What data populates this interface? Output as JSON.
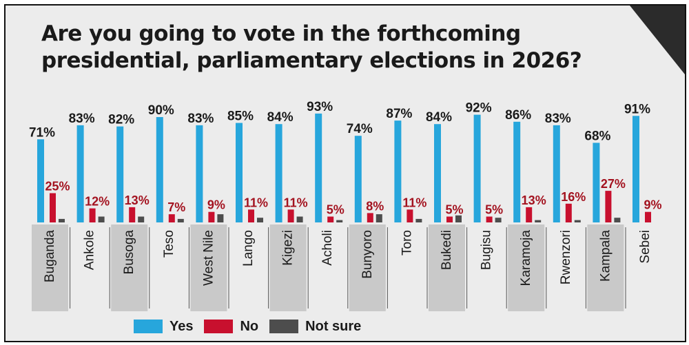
{
  "chart_data": {
    "type": "bar",
    "title_lines": [
      "Are you going to vote in the forthcoming",
      "presidential, parliamentary elections in 2026?"
    ],
    "categories": [
      "Buganda",
      "Ankole",
      "Busoga",
      "Teso",
      "West Nile",
      "Lango",
      "Kigezi",
      "Acholi",
      "Bunyoro",
      "Toro",
      "Bukedi",
      "Bugisu",
      "Karamoja",
      "Rwenzori",
      "Kampala",
      "Sebei"
    ],
    "series": [
      {
        "name": "Yes",
        "color": "#27a6dc",
        "values": [
          71,
          83,
          82,
          90,
          83,
          85,
          84,
          93,
          74,
          87,
          84,
          92,
          86,
          83,
          68,
          91
        ]
      },
      {
        "name": "No",
        "color": "#c8102e",
        "values": [
          25,
          12,
          13,
          7,
          9,
          11,
          11,
          5,
          8,
          11,
          5,
          5,
          13,
          16,
          27,
          9
        ]
      },
      {
        "name": "Not sure",
        "color": "#4d4d4d",
        "values": [
          3,
          5,
          5,
          3,
          7,
          4,
          5,
          2,
          7,
          3,
          6,
          4,
          2,
          2,
          4,
          0
        ]
      }
    ],
    "value_labels": [
      [
        "71%",
        "83%",
        "82%",
        "90%",
        "83%",
        "85%",
        "84%",
        "93%",
        "74%",
        "87%",
        "84%",
        "92%",
        "86%",
        "83%",
        "68%",
        "91%"
      ],
      [
        "25%",
        "12%",
        "13%",
        "7%",
        "9%",
        "11%",
        "11%",
        "5%",
        "8%",
        "11%",
        "5%",
        "5%",
        "13%",
        "16%",
        "27%",
        "9%"
      ]
    ],
    "legend_position": "bottom",
    "shaded_categories": [
      "Buganda",
      "Busoga",
      "West Nile",
      "Kigezi",
      "Bunyoro",
      "Bukedi",
      "Karamoja",
      "Kampala"
    ],
    "ylim": [
      0,
      100
    ]
  },
  "legend": {
    "yes": "Yes",
    "no": "No",
    "not_sure": "Not sure"
  }
}
